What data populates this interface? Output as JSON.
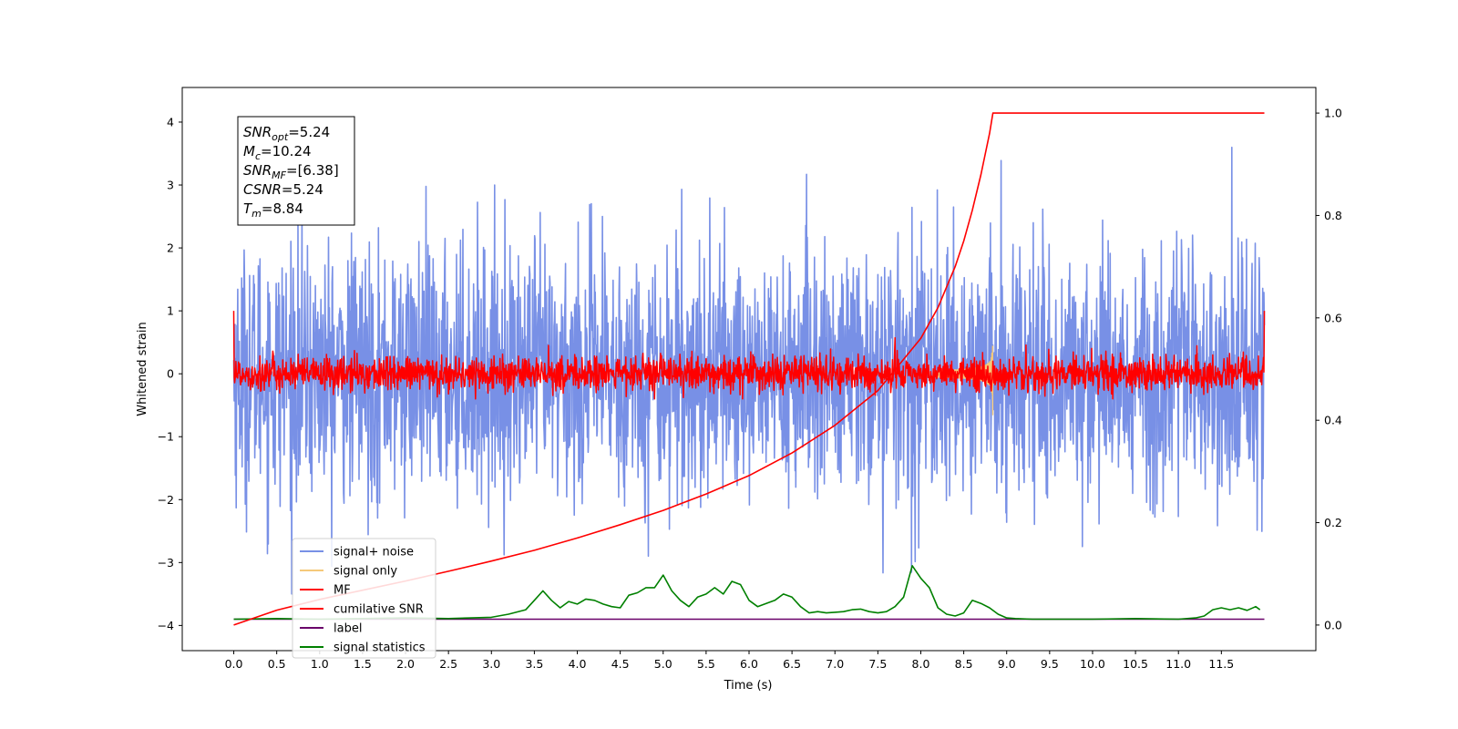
{
  "chart_data": {
    "type": "line",
    "xlabel": "Time (s)",
    "ylabel": "Whitened strain",
    "xlim": [
      -0.6,
      12.6
    ],
    "ylim": [
      -4.4,
      4.55
    ],
    "y2lim": [
      -0.05,
      1.05
    ],
    "x_ticks": [
      "0.0",
      "0.5",
      "1.0",
      "1.5",
      "2.0",
      "2.5",
      "3.0",
      "3.5",
      "4.0",
      "4.5",
      "5.0",
      "5.5",
      "6.0",
      "6.5",
      "7.0",
      "7.5",
      "8.0",
      "8.5",
      "9.0",
      "9.5",
      "10.0",
      "10.5",
      "11.0",
      "11.5"
    ],
    "y_ticks": [
      "4",
      "3",
      "2",
      "1",
      "0",
      "−1",
      "−2",
      "−3",
      "−4"
    ],
    "y2_ticks": [
      "1.0",
      "0.8",
      "0.6",
      "0.4",
      "0.2",
      "0.0"
    ],
    "grid": false,
    "legend_position": "lower-left",
    "annotation": {
      "lines": [
        {
          "main": "SNR",
          "sub": "opt",
          "rest": "=5.24"
        },
        {
          "main": "M",
          "sub": "c",
          "rest": "=10.24"
        },
        {
          "main": "SNR",
          "sub": "MF",
          "rest": "=[6.38]"
        },
        {
          "main": "CSNR",
          "sub": "",
          "rest": "=5.24"
        },
        {
          "main": "T",
          "sub": "m",
          "rest": "=8.84"
        }
      ]
    },
    "series": [
      {
        "name": "signal+ noise",
        "color": "#7890e6",
        "axis": "left",
        "kind": "noise",
        "t_start": 0.0,
        "t_end": 12.0,
        "std": 1.0,
        "min": -3.75,
        "max": 4.2
      },
      {
        "name": "signal only",
        "color": "#f5c97a",
        "axis": "left",
        "kind": "chirp",
        "t_start": 8.2,
        "t_end": 8.84,
        "peak_amplitude": 0.75
      },
      {
        "name": "MF",
        "color": "#ff0000",
        "axis": "left",
        "kind": "noise",
        "t_start": 0.0,
        "t_end": 12.0,
        "std": 0.14,
        "min": -0.4,
        "max": 1.0
      },
      {
        "name": "cumilative SNR",
        "color": "#ff0000",
        "axis": "right",
        "x": [
          0.0,
          0.5,
          1.0,
          1.5,
          2.0,
          2.5,
          3.0,
          3.5,
          4.0,
          4.5,
          5.0,
          5.5,
          6.0,
          6.5,
          7.0,
          7.5,
          8.0,
          8.2,
          8.4,
          8.5,
          8.6,
          8.7,
          8.75,
          8.8,
          8.84,
          12.0
        ],
        "values": [
          0.0,
          0.029,
          0.05,
          0.068,
          0.086,
          0.105,
          0.125,
          0.146,
          0.17,
          0.196,
          0.224,
          0.256,
          0.292,
          0.336,
          0.39,
          0.458,
          0.56,
          0.62,
          0.7,
          0.75,
          0.81,
          0.88,
          0.92,
          0.96,
          1.0,
          1.0
        ]
      },
      {
        "name": "label",
        "color": "#6a006a",
        "axis": "left",
        "x": [
          0.0,
          12.0
        ],
        "values": [
          -3.9,
          -3.9
        ]
      },
      {
        "name": "signal statistics",
        "color": "#008000",
        "axis": "left",
        "x": [
          0.0,
          0.5,
          1.0,
          1.5,
          2.0,
          2.5,
          3.0,
          3.2,
          3.4,
          3.5,
          3.6,
          3.7,
          3.8,
          3.9,
          4.0,
          4.1,
          4.2,
          4.3,
          4.4,
          4.5,
          4.6,
          4.7,
          4.8,
          4.9,
          5.0,
          5.1,
          5.2,
          5.3,
          5.4,
          5.5,
          5.6,
          5.7,
          5.8,
          5.9,
          6.0,
          6.1,
          6.2,
          6.3,
          6.4,
          6.5,
          6.6,
          6.7,
          6.8,
          6.9,
          7.0,
          7.1,
          7.2,
          7.3,
          7.4,
          7.5,
          7.6,
          7.7,
          7.8,
          7.9,
          8.0,
          8.1,
          8.2,
          8.3,
          8.4,
          8.5,
          8.6,
          8.7,
          8.8,
          8.9,
          9.0,
          9.1,
          9.3,
          9.5,
          10.0,
          10.5,
          11.0,
          11.2,
          11.3,
          11.4,
          11.5,
          11.6,
          11.7,
          11.8,
          11.9,
          11.95
        ],
        "values": [
          -3.9,
          -3.89,
          -3.9,
          -3.89,
          -3.88,
          -3.89,
          -3.87,
          -3.82,
          -3.75,
          -3.6,
          -3.45,
          -3.6,
          -3.72,
          -3.62,
          -3.66,
          -3.58,
          -3.6,
          -3.66,
          -3.7,
          -3.72,
          -3.52,
          -3.48,
          -3.4,
          -3.4,
          -3.2,
          -3.45,
          -3.6,
          -3.7,
          -3.55,
          -3.5,
          -3.4,
          -3.5,
          -3.3,
          -3.35,
          -3.6,
          -3.7,
          -3.65,
          -3.6,
          -3.5,
          -3.55,
          -3.7,
          -3.8,
          -3.78,
          -3.8,
          -3.79,
          -3.78,
          -3.75,
          -3.74,
          -3.78,
          -3.8,
          -3.78,
          -3.7,
          -3.55,
          -3.05,
          -3.25,
          -3.4,
          -3.72,
          -3.82,
          -3.85,
          -3.8,
          -3.6,
          -3.65,
          -3.72,
          -3.82,
          -3.88,
          -3.89,
          -3.9,
          -3.9,
          -3.9,
          -3.89,
          -3.9,
          -3.88,
          -3.85,
          -3.75,
          -3.72,
          -3.75,
          -3.72,
          -3.76,
          -3.7,
          -3.75
        ]
      }
    ]
  }
}
